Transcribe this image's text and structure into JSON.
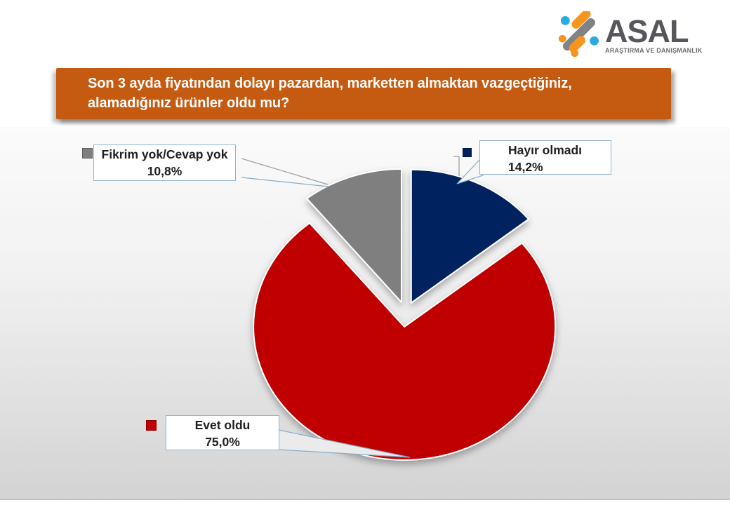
{
  "logo": {
    "name": "ASAL",
    "subtitle": "ARAŞTIRMA VE DANIŞMANLIK",
    "wordmark_color": "#55575B",
    "accent_orange": "#F7941E",
    "accent_blue": "#29ABE2",
    "accent_gray": "#808285"
  },
  "title": {
    "line1": "Son 3 ayda fiyatından dolayı pazardan, marketten almaktan vazgeçtiğiniz,",
    "line2": "alamadığınız ürünler oldu mu?",
    "bg_color": "#C55A11",
    "text_color": "#FFFFFF"
  },
  "chart_data": {
    "type": "pie",
    "title": "Son 3 ayda fiyatından dolayı pazardan, marketten almaktan vazgeçtiğiniz, alamadığınız ürünler oldu mu?",
    "start_angle_deg": 0,
    "direction": "clockwise",
    "exploded": true,
    "legend_position": "callout-labels",
    "slices": [
      {
        "label": "Hayır olmadı",
        "value_pct": 14.2,
        "display_pct": "14,2%",
        "color": "#00215E"
      },
      {
        "label": "Evet oldu",
        "value_pct": 75.0,
        "display_pct": "75,0%",
        "color": "#C00005"
      },
      {
        "label": "Fikrim yok/Cevap yok",
        "value_pct": 10.8,
        "display_pct": "10,8%",
        "color": "#7F7F7F"
      }
    ]
  }
}
